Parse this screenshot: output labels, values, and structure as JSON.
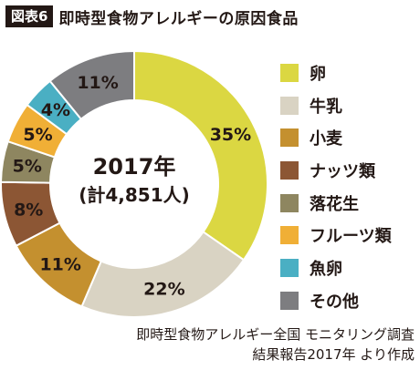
{
  "header": {
    "tag": "図表6",
    "title": "即時型食物アレルギーの原因食品"
  },
  "chart_data": {
    "type": "pie",
    "donut": true,
    "center_label": [
      "2017年",
      "(計4,851人)"
    ],
    "categories": [
      "卵",
      "牛乳",
      "小麦",
      "ナッツ類",
      "落花生",
      "フルーツ類",
      "魚卵",
      "その他"
    ],
    "values": [
      35,
      22,
      11,
      8,
      5,
      5,
      4,
      11
    ],
    "data_labels": [
      "35%",
      "22%",
      "11%",
      "8%",
      "5%",
      "5%",
      "4%",
      "11%"
    ],
    "colors": [
      "#dbd742",
      "#d9d3c3",
      "#c4902f",
      "#8c5634",
      "#8e8660",
      "#f0af36",
      "#4aafc3",
      "#7d7d80"
    ],
    "legend_position": "right"
  },
  "source": [
    "即時型食物アレルギー全国 モニタリング調査",
    "結果報告2017年 より作成"
  ]
}
